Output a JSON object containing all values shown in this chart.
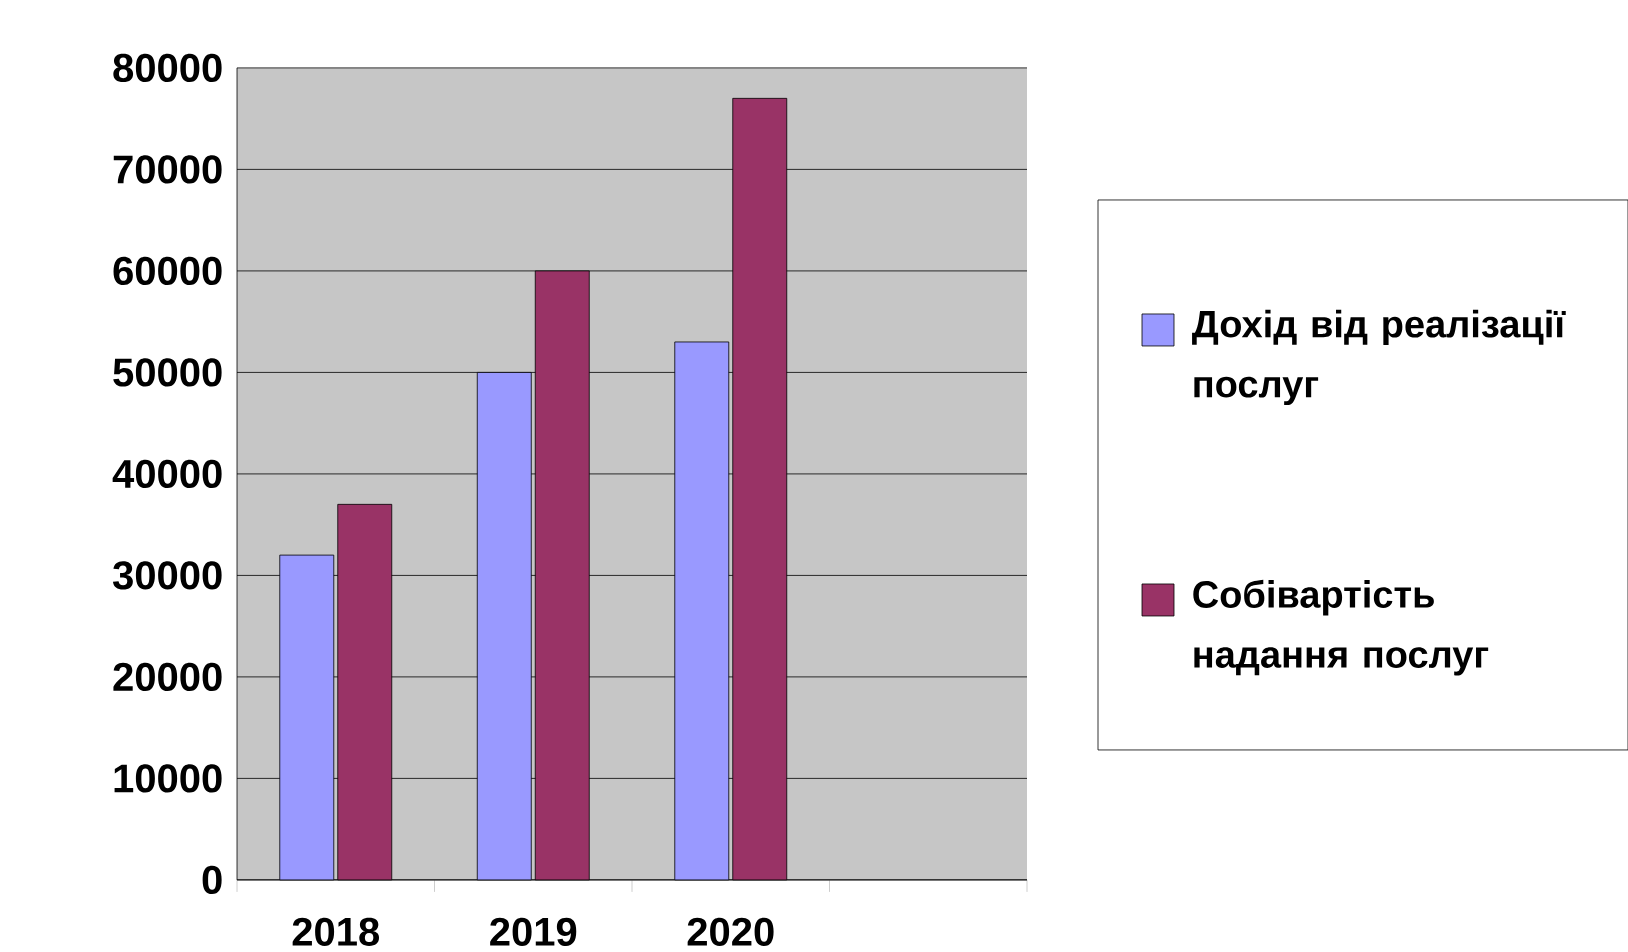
{
  "chart_data": {
    "type": "bar",
    "categories": [
      "2018",
      "2019",
      "2020",
      null
    ],
    "series": [
      {
        "name": "**Дохід від реалізації послуг**",
        "color": "#9999ff",
        "values": [
          32000,
          50000,
          53000,
          null
        ]
      },
      {
        "name": "**Собівартість надання послуг**",
        "color": "#993366",
        "values": [
          37000,
          60000,
          77000,
          null
        ]
      }
    ],
    "ylim": [
      0,
      80000
    ],
    "yticks": [
      0,
      10000,
      20000,
      30000,
      40000,
      50000,
      60000,
      70000,
      80000
    ],
    "grid": "y",
    "legend": "right"
  }
}
